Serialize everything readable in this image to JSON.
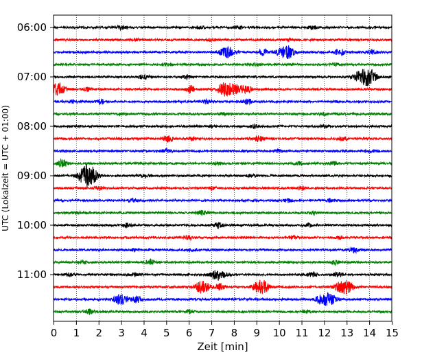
{
  "chart_data": {
    "type": "line",
    "title": "",
    "xlabel": "Zeit  [min]",
    "ylabel": "UTC (Lokalzeit = UTC + 01:00)",
    "xlim": [
      0,
      15
    ],
    "x_ticks": [
      "0",
      "1",
      "2",
      "3",
      "4",
      "5",
      "6",
      "7",
      "8",
      "9",
      "10",
      "11",
      "12",
      "13",
      "14",
      "15"
    ],
    "y_ticks": [
      "06:00",
      "07:00",
      "08:00",
      "09:00",
      "10:00",
      "11:00"
    ],
    "trace_interval_min": 15,
    "grid": "vertical dotted at each minute",
    "colors": [
      "#000000",
      "#ff0000",
      "#0000ff",
      "#008000"
    ],
    "traces": [
      {
        "start": "06:00",
        "color": "#000000",
        "events": [
          [
            3.0,
            0.25
          ],
          [
            6.5,
            0.2
          ],
          [
            8.2,
            0.2
          ],
          [
            11.5,
            0.25
          ]
        ]
      },
      {
        "start": "06:15",
        "color": "#ff0000",
        "events": [
          [
            3.6,
            0.15
          ],
          [
            7.0,
            0.15
          ],
          [
            10.5,
            0.15
          ]
        ]
      },
      {
        "start": "06:30",
        "color": "#0000ff",
        "events": [
          [
            7.7,
            0.8
          ],
          [
            9.3,
            0.45
          ],
          [
            10.2,
            0.75
          ],
          [
            10.5,
            0.6
          ],
          [
            12.7,
            0.5
          ],
          [
            14.1,
            0.3
          ]
        ]
      },
      {
        "start": "06:45",
        "color": "#008000",
        "events": [
          [
            5.0,
            0.2
          ],
          [
            9.0,
            0.2
          ],
          [
            12.5,
            0.2
          ]
        ]
      },
      {
        "start": "07:00",
        "color": "#000000",
        "events": [
          [
            4.0,
            0.35
          ],
          [
            5.9,
            0.3
          ],
          [
            13.6,
            0.7
          ],
          [
            14.0,
            1.15
          ]
        ]
      },
      {
        "start": "07:15",
        "color": "#ff0000",
        "events": [
          [
            0.2,
            0.95
          ],
          [
            1.5,
            0.3
          ],
          [
            6.1,
            0.5
          ],
          [
            7.6,
            1.1
          ],
          [
            8.1,
            0.7
          ],
          [
            8.6,
            0.5
          ]
        ]
      },
      {
        "start": "07:30",
        "color": "#0000ff",
        "events": [
          [
            0.8,
            0.25
          ],
          [
            2.1,
            0.35
          ],
          [
            6.8,
            0.35
          ],
          [
            8.6,
            0.4
          ]
        ]
      },
      {
        "start": "07:45",
        "color": "#008000",
        "events": [
          [
            3.0,
            0.15
          ],
          [
            7.5,
            0.15
          ],
          [
            12.0,
            0.15
          ]
        ]
      },
      {
        "start": "08:00",
        "color": "#000000",
        "events": [
          [
            7.1,
            0.2
          ],
          [
            8.9,
            0.2
          ],
          [
            12.0,
            0.2
          ]
        ]
      },
      {
        "start": "08:15",
        "color": "#ff0000",
        "events": [
          [
            5.1,
            0.55
          ],
          [
            6.2,
            0.25
          ],
          [
            9.1,
            0.45
          ],
          [
            12.8,
            0.25
          ]
        ]
      },
      {
        "start": "08:30",
        "color": "#0000ff",
        "events": [
          [
            5.0,
            0.25
          ],
          [
            10.0,
            0.2
          ],
          [
            14.0,
            0.2
          ]
        ]
      },
      {
        "start": "08:45",
        "color": "#008000",
        "events": [
          [
            0.4,
            0.6
          ],
          [
            7.3,
            0.2
          ],
          [
            10.9,
            0.25
          ],
          [
            12.4,
            0.25
          ]
        ]
      },
      {
        "start": "09:00",
        "color": "#000000",
        "events": [
          [
            1.4,
            1.3
          ],
          [
            1.7,
            0.9
          ],
          [
            4.0,
            0.2
          ],
          [
            8.8,
            0.2
          ]
        ]
      },
      {
        "start": "09:15",
        "color": "#ff0000",
        "events": [
          [
            2.0,
            0.2
          ],
          [
            7.0,
            0.2
          ],
          [
            11.0,
            0.2
          ]
        ]
      },
      {
        "start": "09:30",
        "color": "#0000ff",
        "events": [
          [
            3.5,
            0.2
          ],
          [
            10.4,
            0.25
          ],
          [
            12.3,
            0.2
          ]
        ]
      },
      {
        "start": "09:45",
        "color": "#008000",
        "events": [
          [
            1.1,
            0.2
          ],
          [
            6.6,
            0.4
          ],
          [
            11.5,
            0.2
          ]
        ]
      },
      {
        "start": "10:00",
        "color": "#000000",
        "events": [
          [
            3.2,
            0.35
          ],
          [
            7.3,
            0.45
          ],
          [
            11.3,
            0.3
          ]
        ]
      },
      {
        "start": "10:15",
        "color": "#ff0000",
        "events": [
          [
            6.0,
            0.3
          ],
          [
            10.6,
            0.2
          ],
          [
            12.7,
            0.2
          ]
        ]
      },
      {
        "start": "10:30",
        "color": "#0000ff",
        "events": [
          [
            3.5,
            0.2
          ],
          [
            6.2,
            0.2
          ],
          [
            13.3,
            0.45
          ]
        ]
      },
      {
        "start": "10:45",
        "color": "#008000",
        "events": [
          [
            1.3,
            0.2
          ],
          [
            4.3,
            0.35
          ],
          [
            12.5,
            0.3
          ]
        ]
      },
      {
        "start": "11:00",
        "color": "#000000",
        "events": [
          [
            0.7,
            0.25
          ],
          [
            3.6,
            0.25
          ],
          [
            7.3,
            0.8
          ],
          [
            11.5,
            0.35
          ],
          [
            12.6,
            0.35
          ]
        ]
      },
      {
        "start": "11:15",
        "color": "#ff0000",
        "events": [
          [
            6.6,
            0.95
          ],
          [
            7.4,
            0.45
          ],
          [
            9.2,
            1.15
          ],
          [
            12.8,
            0.95
          ],
          [
            13.1,
            0.5
          ]
        ]
      },
      {
        "start": "11:30",
        "color": "#0000ff",
        "events": [
          [
            3.0,
            0.75
          ],
          [
            3.7,
            0.5
          ],
          [
            12.2,
            0.95
          ],
          [
            11.8,
            0.5
          ]
        ]
      },
      {
        "start": "11:45",
        "color": "#008000",
        "events": [
          [
            1.6,
            0.35
          ],
          [
            6.0,
            0.25
          ],
          [
            11.2,
            0.2
          ]
        ]
      }
    ]
  }
}
